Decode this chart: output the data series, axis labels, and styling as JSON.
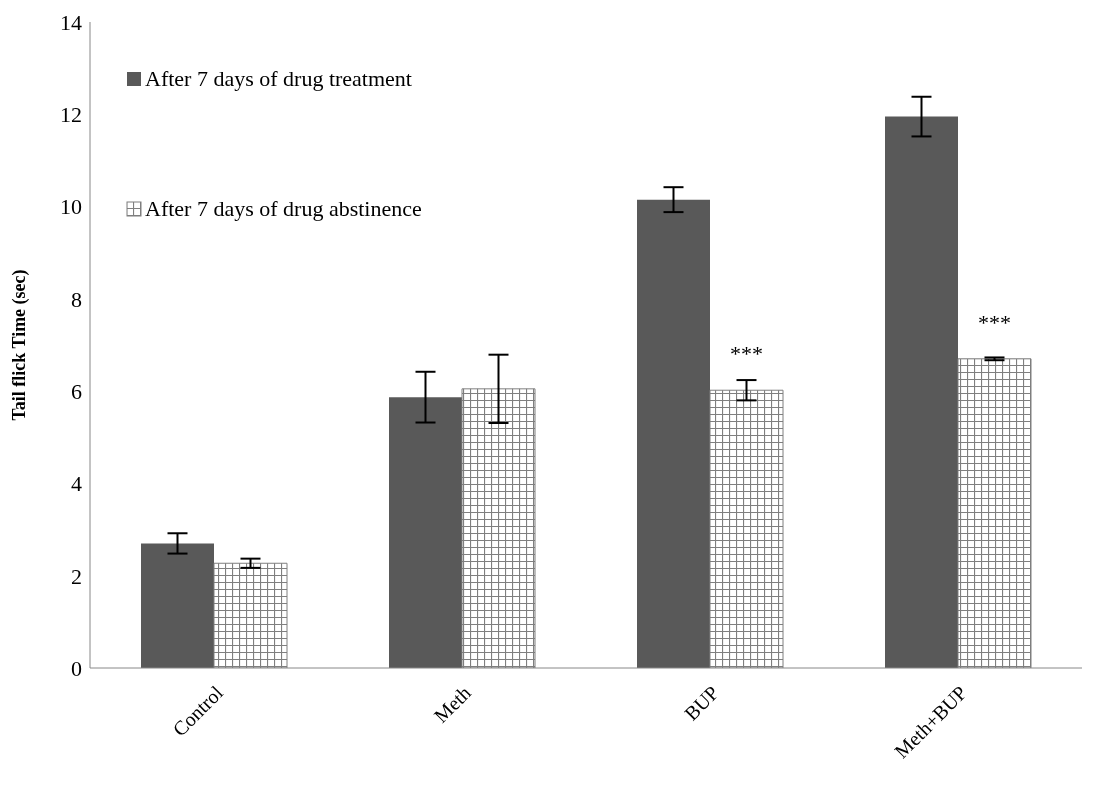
{
  "chart_data": {
    "type": "bar",
    "ylabel": "Tail flick Time (sec)",
    "categories": [
      "Control",
      "Meth",
      "BUP",
      "Meth+BUP"
    ],
    "series": [
      {
        "name": "After 7 days of drug treatment",
        "color": "#595959",
        "values": [
          2.7,
          5.87,
          10.15,
          11.95
        ],
        "errors": [
          0.22,
          0.55,
          0.27,
          0.43
        ]
      },
      {
        "name": "After 7 days of drug abstinence",
        "color": "#7f7f7f",
        "values": [
          2.27,
          6.05,
          6.02,
          6.7
        ],
        "errors": [
          0.1,
          0.74,
          0.22,
          0.03
        ]
      }
    ],
    "annotations": [
      {
        "text": "***",
        "x": "BUP",
        "y": 6.02
      },
      {
        "text": "***",
        "x": "Meth+BUP",
        "y": 6.7
      }
    ],
    "ylim": [
      0,
      14
    ],
    "yticks": [
      0,
      2,
      4,
      6,
      8,
      10,
      12,
      14
    ],
    "grid": false,
    "legend": "top left"
  }
}
